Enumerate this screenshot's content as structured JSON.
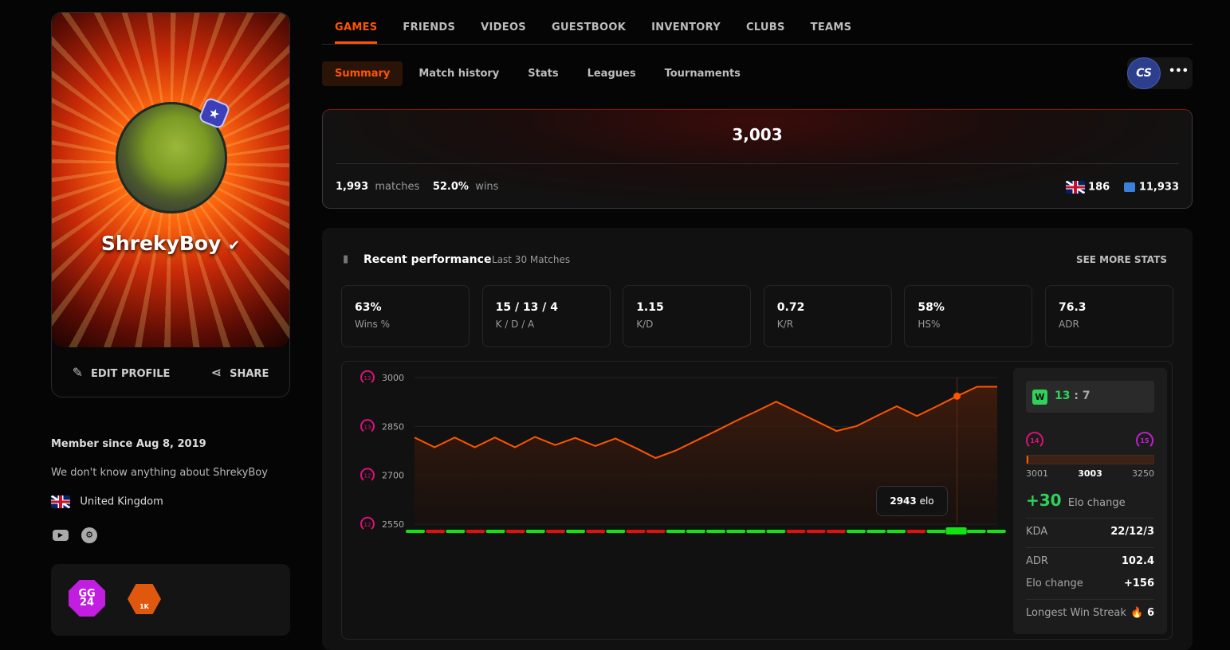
{
  "profile": {
    "username": "ShrekyBoy",
    "edit_label": "EDIT PROFILE",
    "share_label": "SHARE",
    "member_since": "Member since Aug 8, 2019",
    "bio": "We don't know anything about ShrekyBoy",
    "country": "United Kingdom",
    "badges": [
      {
        "icon": "gg24-badge",
        "text": "GG 24"
      },
      {
        "icon": "1k-badge",
        "text": "1K"
      }
    ]
  },
  "top_tabs": [
    {
      "label": "GAMES",
      "active": true
    },
    {
      "label": "FRIENDS"
    },
    {
      "label": "VIDEOS"
    },
    {
      "label": "GUESTBOOK"
    },
    {
      "label": "INVENTORY"
    },
    {
      "label": "CLUBS"
    },
    {
      "label": "TEAMS"
    }
  ],
  "sub_tabs": [
    {
      "label": "Summary",
      "active": true
    },
    {
      "label": "Match history"
    },
    {
      "label": "Stats"
    },
    {
      "label": "Leagues"
    },
    {
      "label": "Tournaments"
    }
  ],
  "game_selector": {
    "game": "CS",
    "more_label": "•••"
  },
  "elo_card": {
    "elo": "3,003",
    "matches": "1,993",
    "matches_label": "matches",
    "wins": "52.0%",
    "wins_label": "wins",
    "country_rank": "186",
    "region_rank": "11,933"
  },
  "performance": {
    "title": "Recent performance",
    "subtitle": "Last 30 Matches",
    "see_more": "SEE MORE STATS",
    "stats": [
      {
        "value": "63%",
        "label": "Wins %"
      },
      {
        "value": "15 / 13 / 4",
        "label": "K / D / A"
      },
      {
        "value": "1.15",
        "label": "K/D"
      },
      {
        "value": "0.72",
        "label": "K/R"
      },
      {
        "value": "58%",
        "label": "HS%"
      },
      {
        "value": "76.3",
        "label": "ADR"
      }
    ]
  },
  "chart_data": {
    "type": "line",
    "ylim": [
      2550,
      3000
    ],
    "yticks": [
      {
        "value": 3000,
        "label": "3000",
        "level": "13"
      },
      {
        "value": 2850,
        "label": "2850",
        "level": "13"
      },
      {
        "value": 2700,
        "label": "2700",
        "level": "12"
      },
      {
        "value": 2550,
        "label": "2550",
        "level": "12"
      }
    ],
    "values": [
      2816,
      2786,
      2816,
      2786,
      2816,
      2786,
      2818,
      2793,
      2815,
      2790,
      2813,
      2784,
      2753,
      2776,
      2806,
      2836,
      2867,
      2896,
      2926,
      2896,
      2866,
      2836,
      2851,
      2882,
      2912,
      2882,
      2912,
      2943,
      2972,
      2972
    ],
    "results": [
      "W",
      "L",
      "W",
      "L",
      "W",
      "L",
      "W",
      "L",
      "W",
      "L",
      "W",
      "L",
      "L",
      "W",
      "W",
      "W",
      "W",
      "W",
      "W",
      "L",
      "L",
      "L",
      "W",
      "W",
      "W",
      "L",
      "W",
      "W",
      "W",
      "W"
    ],
    "highlight_index": 27,
    "tooltip": {
      "value": "2943",
      "unit": "elo"
    },
    "colors": {
      "line": "#ff5500",
      "win": "#12e312",
      "loss": "#e01010"
    }
  },
  "match_detail": {
    "result": "W",
    "score_team": "13",
    "score_sep": ":",
    "score_enemy": "7",
    "level_from": "14",
    "level_to": "15",
    "progress_min": "3001",
    "progress_current": "3003",
    "progress_max": "3250",
    "progress_fraction": 0.008,
    "elo_change": "+30",
    "elo_change_label": "Elo change",
    "rows": [
      {
        "k": "KDA",
        "v": "22/12/3"
      },
      {
        "k": "ADR",
        "v": "102.4"
      },
      {
        "k": "Elo change",
        "v": "+156"
      },
      {
        "k": "Longest Win Streak",
        "v": "6"
      }
    ]
  }
}
